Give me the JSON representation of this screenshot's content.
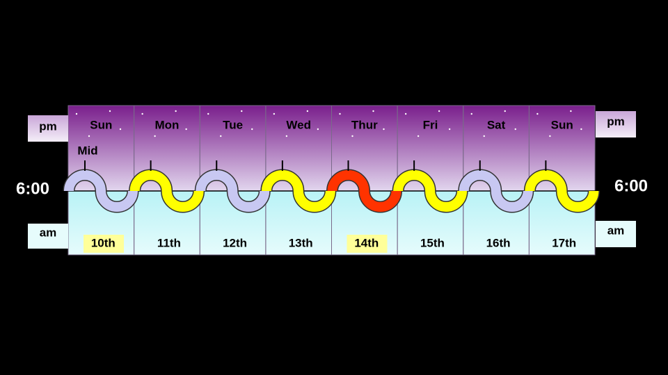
{
  "left": {
    "pm": "pm",
    "time": "6:00",
    "am": "am"
  },
  "right": {
    "pm": "pm",
    "time": "6:00",
    "am": "am"
  },
  "mid_label": "Mid",
  "days": [
    {
      "day": "Sun",
      "date": "10th"
    },
    {
      "day": "Mon",
      "date": "11th"
    },
    {
      "day": "Tue",
      "date": "12th"
    },
    {
      "day": "Wed",
      "date": "13th"
    },
    {
      "day": "Thur",
      "date": "14th"
    },
    {
      "day": "Fri",
      "date": "15th"
    },
    {
      "day": "Sat",
      "date": "16th"
    },
    {
      "day": "Sun",
      "date": "17th"
    }
  ]
}
